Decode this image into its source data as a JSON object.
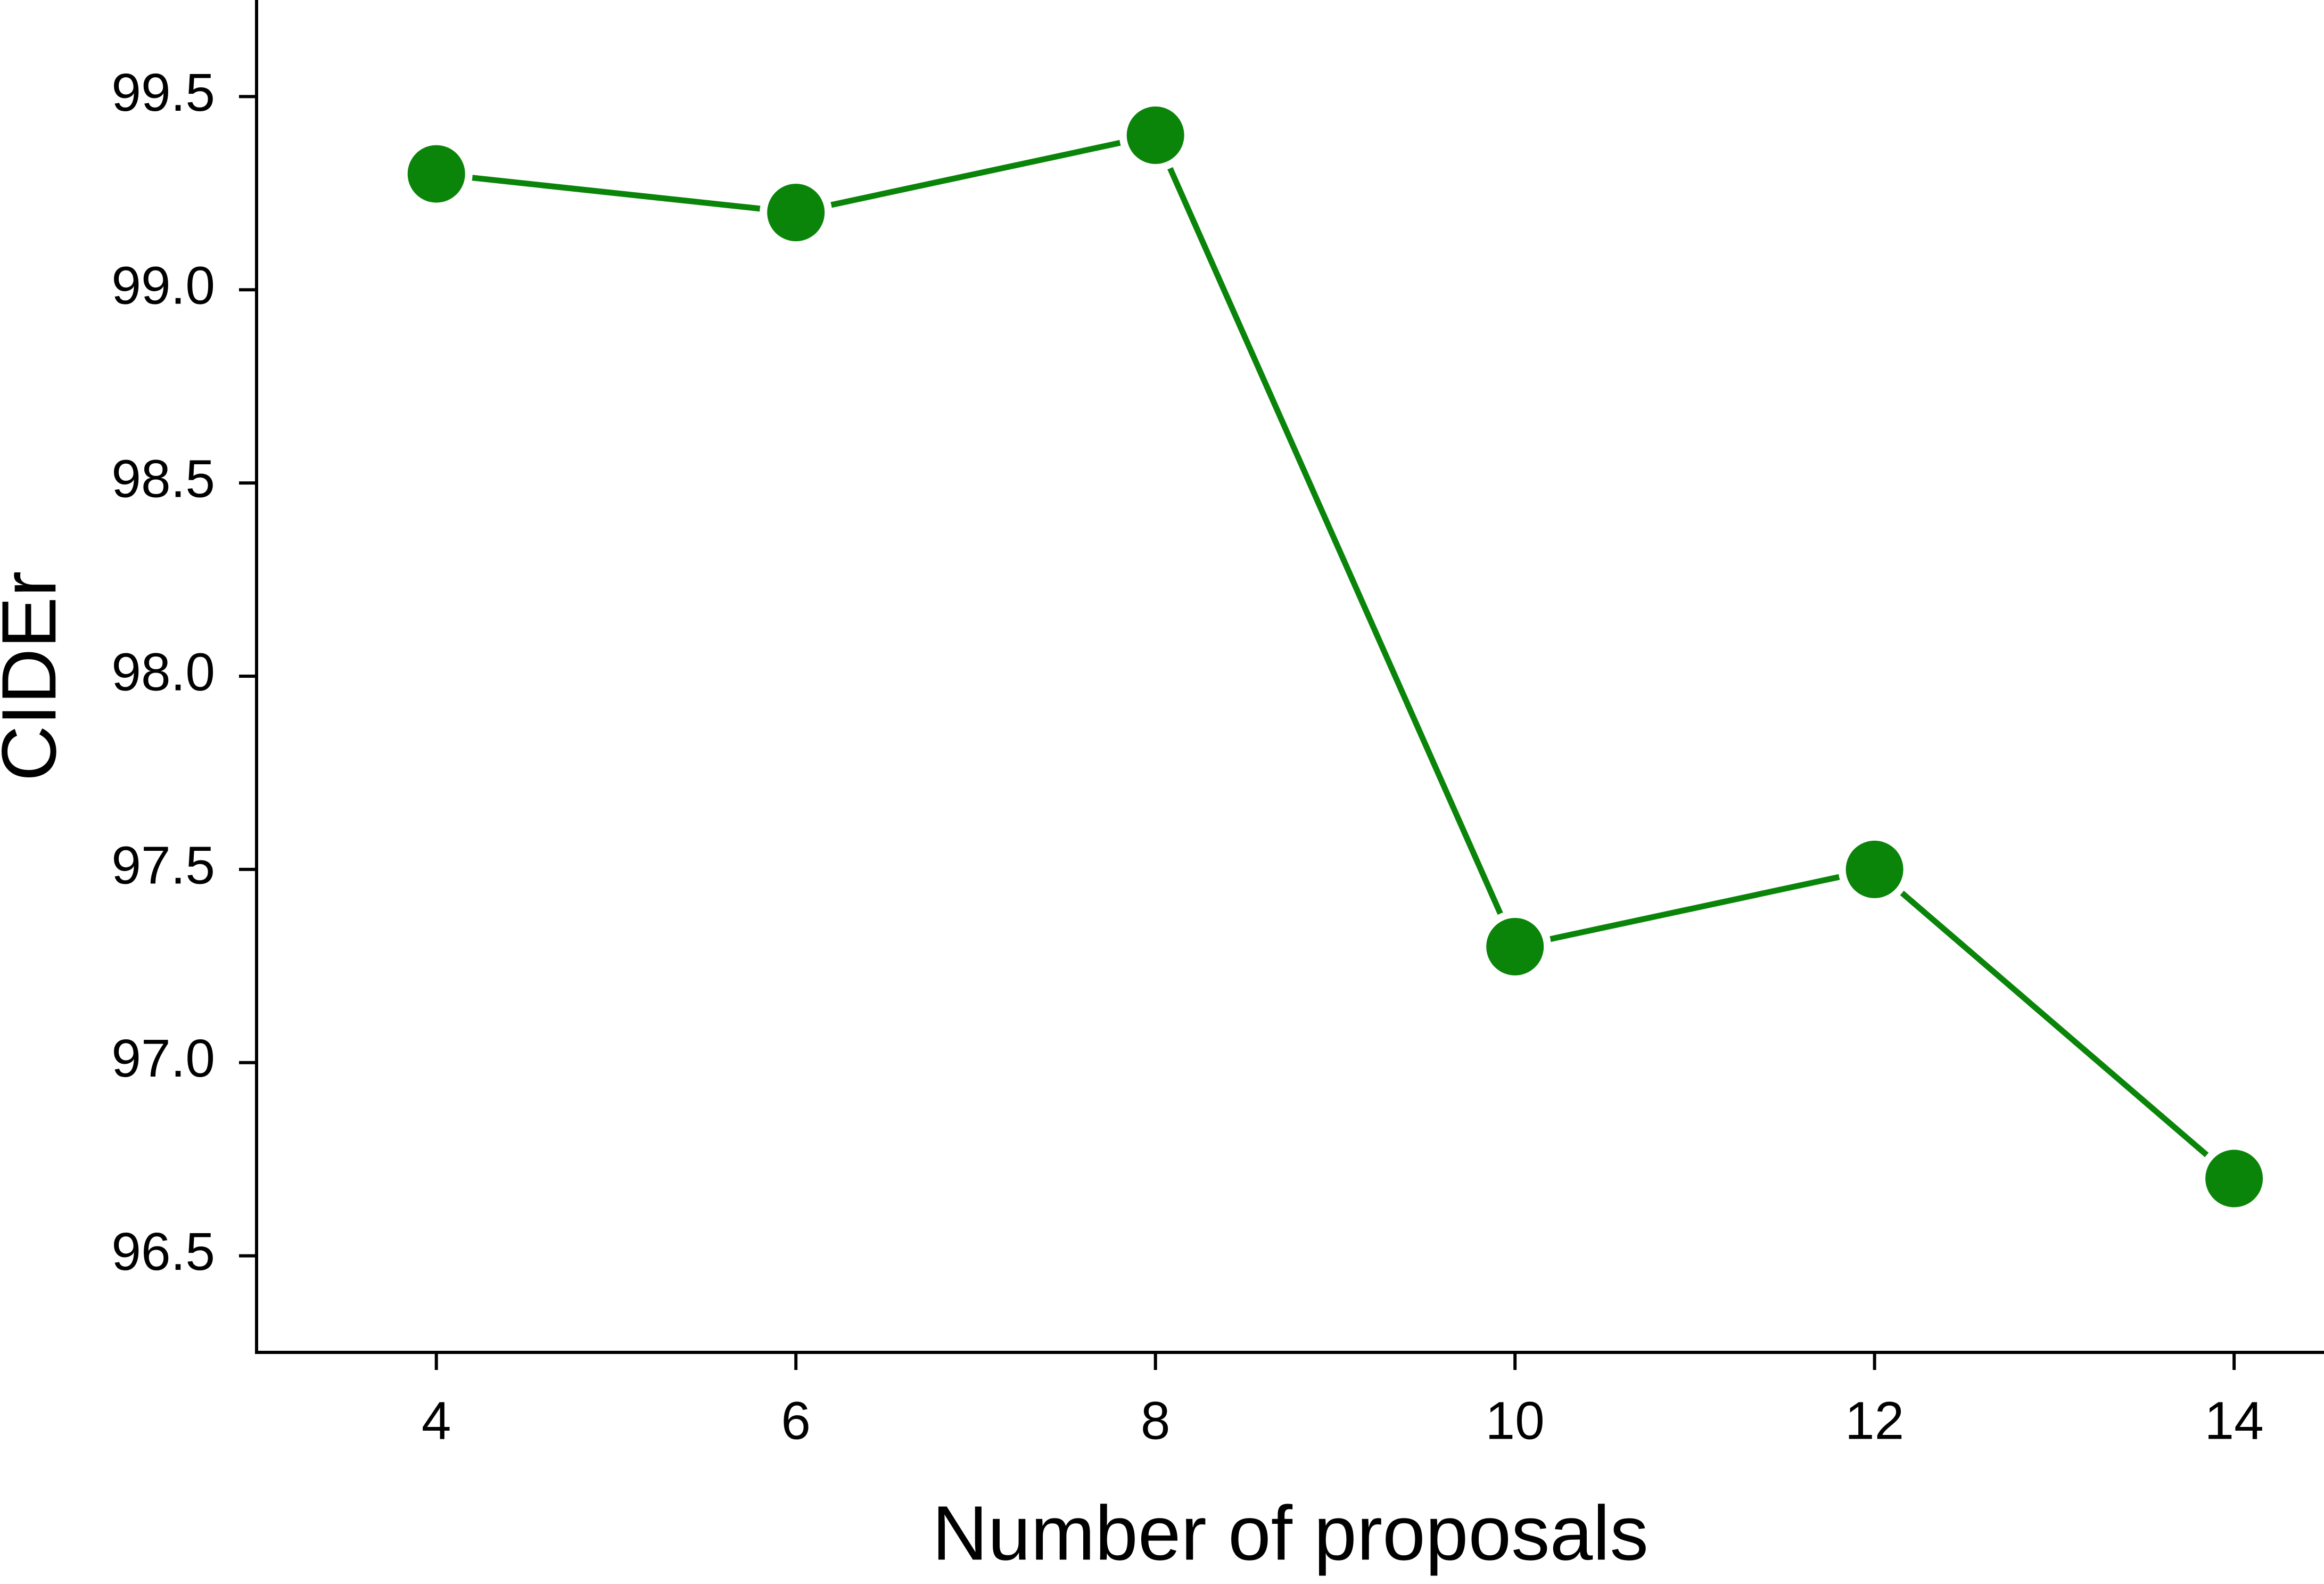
{
  "chart_data": {
    "type": "line",
    "x_label": "Number of proposals",
    "y_label": "CIDEr",
    "x": [
      4,
      6,
      8,
      10,
      12,
      14
    ],
    "series": [
      {
        "color": "#0a850a",
        "values": [
          99.3,
          99.2,
          99.4,
          97.3,
          97.5,
          96.7
        ]
      }
    ],
    "xlim": [
      3,
      14.5
    ],
    "xticks": [
      4,
      6,
      8,
      10,
      12,
      14
    ],
    "ylim": [
      96.25,
      99.75
    ],
    "yticks": [
      {
        "value": 96.5,
        "label": "96.5"
      },
      {
        "value": 97,
        "label": "97.0"
      },
      {
        "value": 97.5,
        "label": "97.5"
      },
      {
        "value": 98,
        "label": "98.0"
      },
      {
        "value": 98.5,
        "label": "98.5"
      },
      {
        "value": 99,
        "label": "99.0"
      },
      {
        "value": 99.5,
        "label": "99.5"
      }
    ],
    "grid": false,
    "markers": true
  }
}
